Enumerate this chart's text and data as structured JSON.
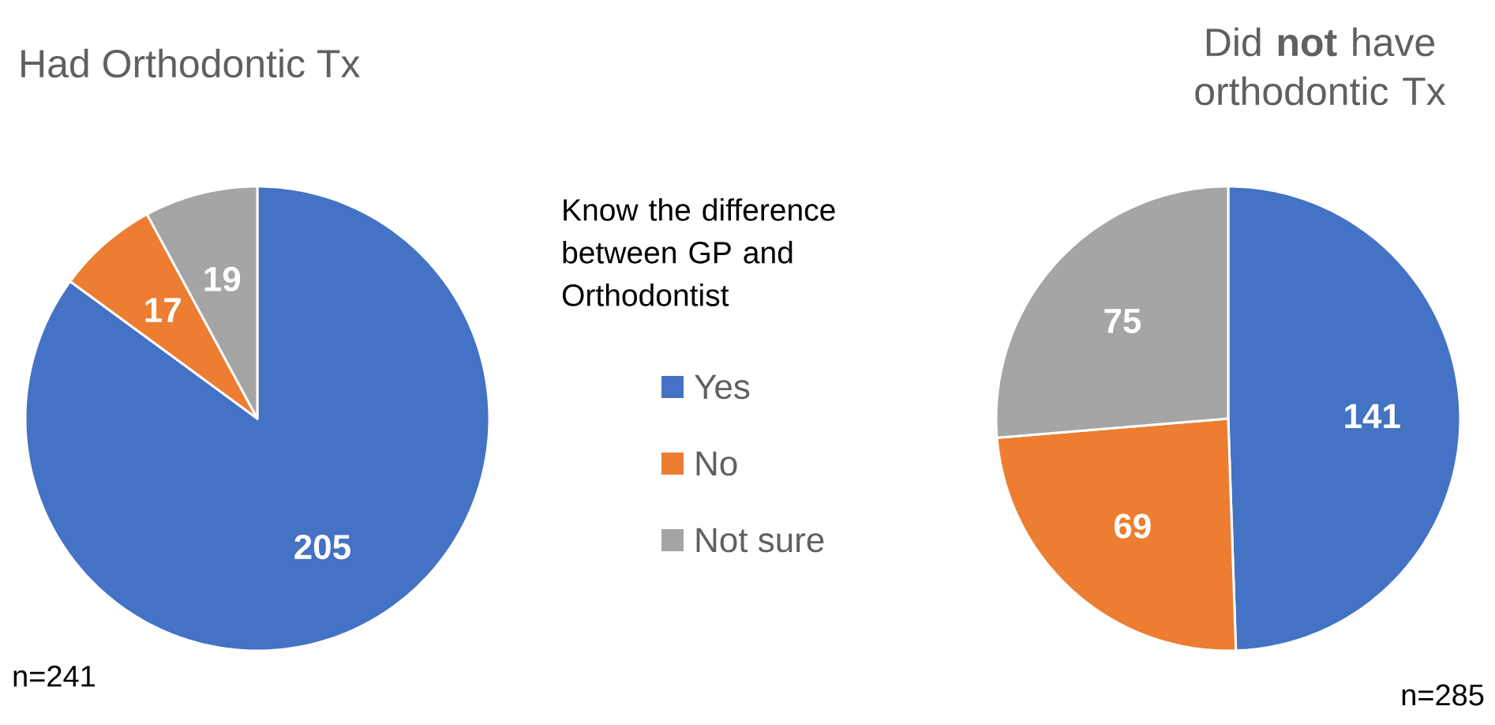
{
  "chart_data": [
    {
      "type": "pie",
      "title": "Had Orthodontic Tx",
      "categories": [
        "Yes",
        "No",
        "Not sure"
      ],
      "values": [
        205,
        17,
        19
      ],
      "colors": [
        "#4472c4",
        "#ed7d31",
        "#a5a5a5"
      ],
      "data_labels": true,
      "legend": "right",
      "legend_title": "Know the difference between GP and Orthodontist",
      "annotations": [
        "n=241"
      ]
    },
    {
      "type": "pie",
      "title": "Did **not** have orthodontic Tx",
      "categories": [
        null,
        null,
        null
      ],
      "values": [
        141,
        69,
        75
      ],
      "colors": [
        "#4472c4",
        "#ed7d31",
        "#a5a5a5"
      ],
      "data_labels": true,
      "annotations": [
        "n=285"
      ]
    }
  ]
}
